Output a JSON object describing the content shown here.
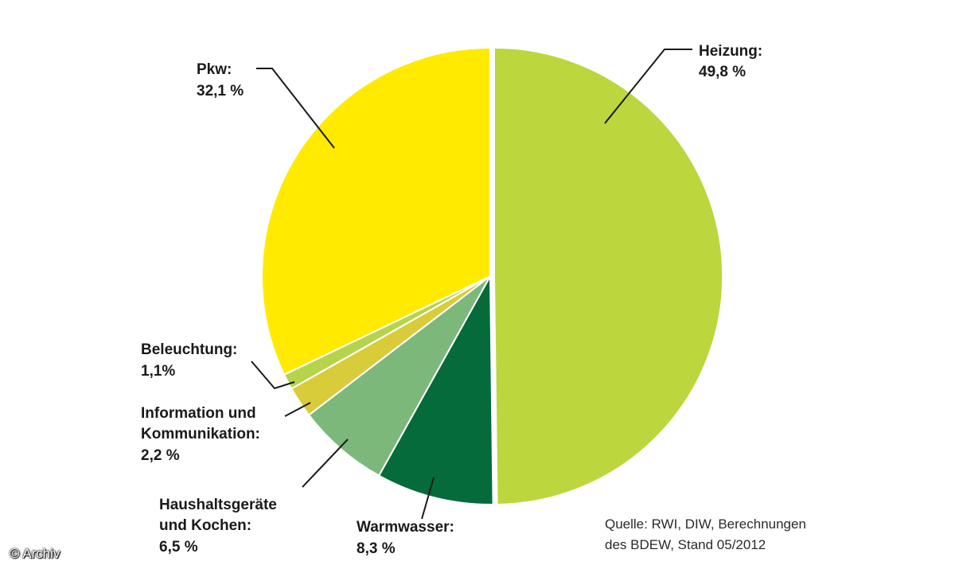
{
  "chart_data": {
    "type": "pie",
    "slices": [
      {
        "key": "heizung",
        "label": [
          "Heizung:"
        ],
        "value_label": "49,8 %",
        "value": 49.8,
        "color": "#bcd63e"
      },
      {
        "key": "warmwasser",
        "label": [
          "Warmwasser:"
        ],
        "value_label": "8,3 %",
        "value": 8.3,
        "color": "#056b3a"
      },
      {
        "key": "haushalt",
        "label": [
          "Haushaltsgeräte",
          "und Kochen:"
        ],
        "value_label": "6,5 %",
        "value": 6.5,
        "color": "#7db87b"
      },
      {
        "key": "information",
        "label": [
          "Information und",
          "Kommunikation:"
        ],
        "value_label": "2,2 %",
        "value": 2.2,
        "color": "#d8cc3a"
      },
      {
        "key": "beleuchtung",
        "label": [
          "Beleuchtung:"
        ],
        "value_label": "1,1%",
        "value": 1.1,
        "color": "#b5d44c"
      },
      {
        "key": "pkw",
        "label": [
          "Pkw:"
        ],
        "value_label": "32,1 %",
        "value": 32.1,
        "color": "#ffea00"
      }
    ]
  },
  "source": {
    "line1": "Quelle: RWI, DIW, Berechnungen",
    "line2": "des BDEW, Stand 05/2012"
  },
  "credit": "© Archiv"
}
